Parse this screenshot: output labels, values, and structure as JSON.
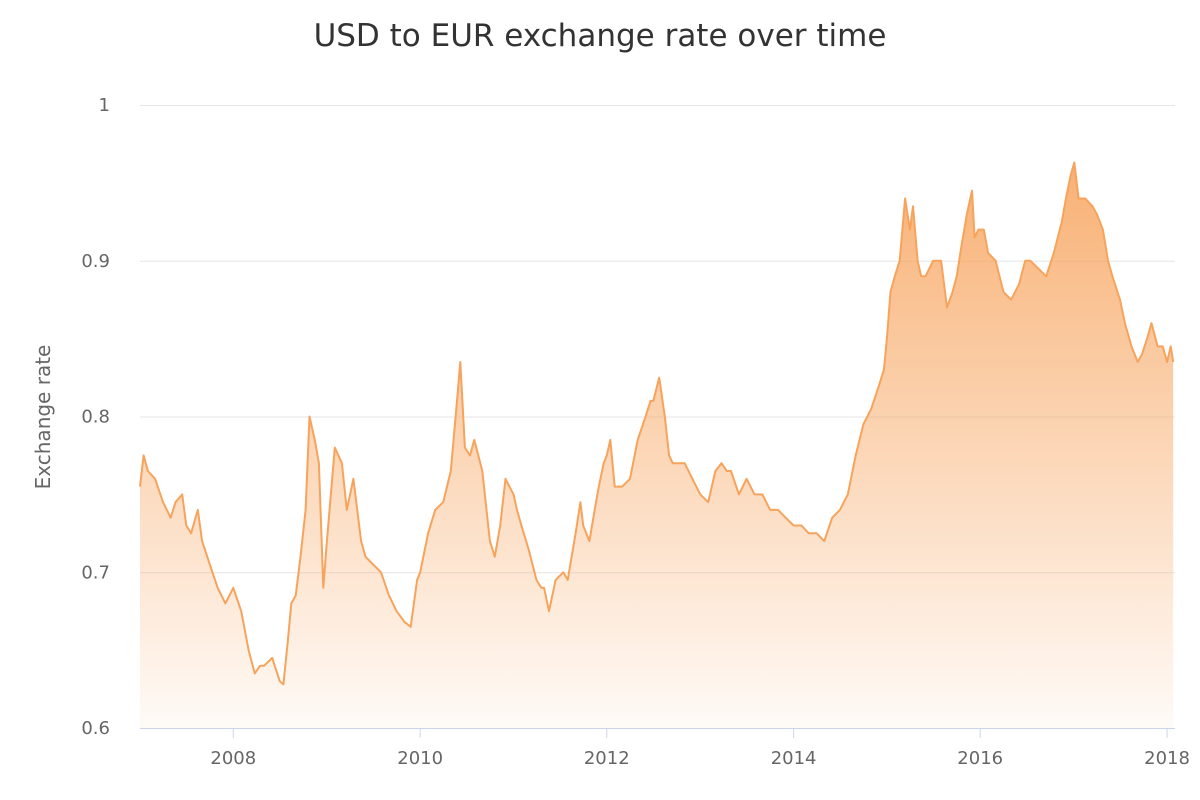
{
  "chart_data": {
    "type": "area",
    "title": "USD to EUR exchange rate over time",
    "xlabel": "",
    "ylabel": "Exchange rate",
    "xlim": [
      "2007-01-01",
      "2018-02-01"
    ],
    "ylim": [
      0.6,
      1.0
    ],
    "y_ticks": [
      0.6,
      0.7,
      0.8,
      0.9,
      1.0
    ],
    "y_tick_labels": [
      "0.6",
      "0.7",
      "0.8",
      "0.9",
      "1"
    ],
    "x_ticks": [
      "2008-01-01",
      "2010-01-01",
      "2012-01-01",
      "2014-01-01",
      "2016-01-01",
      "2018-01-01"
    ],
    "x_tick_labels": [
      "2008",
      "2010",
      "2012",
      "2014",
      "2016",
      "2018"
    ],
    "grid": true,
    "legend": "none",
    "color": "#f7a35c",
    "series": [
      {
        "x": [
          "2007-01-01",
          "2007-01-15",
          "2007-02-01",
          "2007-03-01",
          "2007-04-01",
          "2007-05-01",
          "2007-05-20",
          "2007-06-15",
          "2007-07-01",
          "2007-07-20",
          "2007-08-15",
          "2007-09-01",
          "2007-10-01",
          "2007-11-01",
          "2007-12-01",
          "2008-01-01",
          "2008-02-01",
          "2008-03-01",
          "2008-03-25",
          "2008-04-15",
          "2008-05-01",
          "2008-06-01",
          "2008-07-01",
          "2008-07-15",
          "2008-08-01",
          "2008-08-15",
          "2008-09-01",
          "2008-09-20",
          "2008-10-10",
          "2008-10-25",
          "2008-11-15",
          "2008-12-01",
          "2008-12-18",
          "2009-01-01",
          "2009-02-01",
          "2009-03-01",
          "2009-03-20",
          "2009-04-15",
          "2009-05-15",
          "2009-06-01",
          "2009-07-01",
          "2009-08-01",
          "2009-09-01",
          "2009-10-01",
          "2009-11-01",
          "2009-11-25",
          "2009-12-20",
          "2010-01-01",
          "2010-02-01",
          "2010-03-01",
          "2010-04-01",
          "2010-05-01",
          "2010-05-25",
          "2010-06-07",
          "2010-06-25",
          "2010-07-15",
          "2010-08-01",
          "2010-09-01",
          "2010-10-01",
          "2010-10-20",
          "2010-11-10",
          "2010-12-01",
          "2011-01-01",
          "2011-01-15",
          "2011-02-01",
          "2011-03-01",
          "2011-04-01",
          "2011-04-20",
          "2011-05-01",
          "2011-05-20",
          "2011-06-15",
          "2011-07-15",
          "2011-08-01",
          "2011-09-01",
          "2011-09-20",
          "2011-10-01",
          "2011-10-25",
          "2011-11-15",
          "2011-12-01",
          "2011-12-20",
          "2012-01-01",
          "2012-01-15",
          "2012-02-01",
          "2012-03-01",
          "2012-04-01",
          "2012-05-01",
          "2012-06-01",
          "2012-06-20",
          "2012-07-01",
          "2012-07-24",
          "2012-08-15",
          "2012-09-01",
          "2012-09-15",
          "2012-10-01",
          "2012-11-01",
          "2012-12-01",
          "2013-01-01",
          "2013-02-01",
          "2013-03-01",
          "2013-03-25",
          "2013-04-15",
          "2013-05-01",
          "2013-06-01",
          "2013-07-01",
          "2013-08-01",
          "2013-09-01",
          "2013-10-01",
          "2013-11-01",
          "2013-12-01",
          "2014-01-01",
          "2014-02-01",
          "2014-03-01",
          "2014-04-01",
          "2014-05-01",
          "2014-06-01",
          "2014-07-01",
          "2014-08-01",
          "2014-09-01",
          "2014-10-01",
          "2014-11-01",
          "2014-12-01",
          "2014-12-20",
          "2015-01-01",
          "2015-01-15",
          "2015-02-01",
          "2015-02-20",
          "2015-03-13",
          "2015-04-01",
          "2015-04-13",
          "2015-05-01",
          "2015-05-15",
          "2015-06-01",
          "2015-07-01",
          "2015-08-01",
          "2015-08-24",
          "2015-09-15",
          "2015-10-01",
          "2015-10-20",
          "2015-11-10",
          "2015-11-30",
          "2015-12-10",
          "2015-12-25",
          "2016-01-15",
          "2016-02-01",
          "2016-03-01",
          "2016-04-01",
          "2016-05-01",
          "2016-06-01",
          "2016-06-25",
          "2016-07-15",
          "2016-08-15",
          "2016-09-15",
          "2016-10-15",
          "2016-11-15",
          "2016-12-01",
          "2016-12-20",
          "2017-01-03",
          "2017-01-20",
          "2017-02-15",
          "2017-03-15",
          "2017-04-01",
          "2017-04-25",
          "2017-05-15",
          "2017-06-01",
          "2017-07-01",
          "2017-07-20",
          "2017-08-15",
          "2017-09-08",
          "2017-09-25",
          "2017-10-15",
          "2017-11-01",
          "2017-11-25",
          "2017-12-15",
          "2018-01-01",
          "2018-01-15",
          "2018-01-25"
        ],
        "y": [
          0.755,
          0.775,
          0.765,
          0.76,
          0.745,
          0.735,
          0.745,
          0.75,
          0.73,
          0.725,
          0.74,
          0.72,
          0.705,
          0.69,
          0.68,
          0.69,
          0.675,
          0.65,
          0.635,
          0.64,
          0.64,
          0.645,
          0.63,
          0.628,
          0.655,
          0.68,
          0.685,
          0.71,
          0.74,
          0.8,
          0.785,
          0.77,
          0.69,
          0.72,
          0.78,
          0.77,
          0.74,
          0.76,
          0.72,
          0.71,
          0.705,
          0.7,
          0.685,
          0.675,
          0.668,
          0.665,
          0.695,
          0.7,
          0.725,
          0.74,
          0.745,
          0.765,
          0.81,
          0.835,
          0.78,
          0.775,
          0.785,
          0.765,
          0.72,
          0.71,
          0.73,
          0.76,
          0.75,
          0.74,
          0.73,
          0.715,
          0.695,
          0.69,
          0.69,
          0.675,
          0.695,
          0.7,
          0.695,
          0.725,
          0.745,
          0.73,
          0.72,
          0.74,
          0.755,
          0.77,
          0.775,
          0.785,
          0.755,
          0.755,
          0.76,
          0.785,
          0.8,
          0.81,
          0.81,
          0.825,
          0.8,
          0.775,
          0.77,
          0.77,
          0.77,
          0.76,
          0.75,
          0.745,
          0.765,
          0.77,
          0.765,
          0.765,
          0.75,
          0.76,
          0.75,
          0.75,
          0.74,
          0.74,
          0.735,
          0.73,
          0.73,
          0.725,
          0.725,
          0.72,
          0.735,
          0.74,
          0.75,
          0.775,
          0.795,
          0.805,
          0.82,
          0.83,
          0.85,
          0.88,
          0.89,
          0.9,
          0.94,
          0.92,
          0.935,
          0.9,
          0.89,
          0.89,
          0.9,
          0.9,
          0.87,
          0.88,
          0.89,
          0.91,
          0.93,
          0.945,
          0.915,
          0.92,
          0.92,
          0.905,
          0.9,
          0.88,
          0.875,
          0.885,
          0.9,
          0.9,
          0.895,
          0.89,
          0.905,
          0.925,
          0.94,
          0.955,
          0.963,
          0.94,
          0.94,
          0.935,
          0.93,
          0.92,
          0.9,
          0.89,
          0.875,
          0.86,
          0.845,
          0.835,
          0.84,
          0.85,
          0.86,
          0.845,
          0.845,
          0.835,
          0.845,
          0.835
        ]
      }
    ]
  }
}
